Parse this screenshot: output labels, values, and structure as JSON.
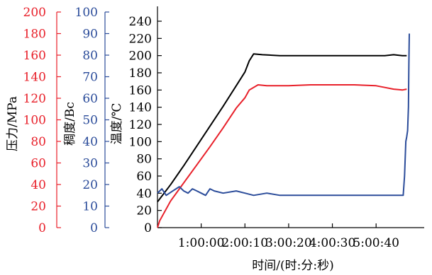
{
  "chart_data": {
    "type": "line",
    "title": "",
    "xlabel": "时间/(时:分:秒)",
    "x_unit": "hours",
    "xlim": [
      0,
      6.1
    ],
    "x_ticks": [
      {
        "value": 1.0,
        "label": "1:00:00"
      },
      {
        "value": 2.0,
        "label": "2:00:10"
      },
      {
        "value": 3.0,
        "label": "3:00:20"
      },
      {
        "value": 4.0,
        "label": "4:00:30"
      },
      {
        "value": 5.0,
        "label": "5:00:40"
      }
    ],
    "axes": [
      {
        "id": "pressure",
        "label": "压力/MPa",
        "color": "#e8202a",
        "ylim": [
          0,
          200
        ],
        "ticks": [
          0,
          20,
          40,
          60,
          80,
          100,
          120,
          140,
          160,
          180,
          200
        ]
      },
      {
        "id": "consistency",
        "label": "稠度/Bc",
        "color": "#2b4c9a",
        "ylim": [
          0,
          100
        ],
        "ticks": [
          0,
          10,
          20,
          30,
          40,
          50,
          60,
          70,
          80,
          90,
          100
        ]
      },
      {
        "id": "temperature",
        "label": "温度/℃",
        "color": "#000000",
        "ylim": [
          0,
          250
        ],
        "ticks": [
          0,
          20,
          40,
          60,
          80,
          100,
          120,
          140,
          160,
          180,
          200,
          220,
          240
        ]
      }
    ],
    "series": [
      {
        "axis": "temperature",
        "color": "#000000",
        "x": [
          0.0,
          0.3,
          0.6,
          0.9,
          1.2,
          1.5,
          1.8,
          2.0,
          2.1,
          2.2,
          2.4,
          2.8,
          3.2,
          3.6,
          4.0,
          4.4,
          4.8,
          5.0,
          5.2,
          5.4,
          5.6,
          5.7
        ],
        "y": [
          30,
          50,
          72,
          95,
          118,
          141,
          165,
          181,
          194,
          202,
          201,
          200,
          200,
          200,
          200,
          200,
          200,
          200,
          200,
          201,
          200,
          200
        ]
      },
      {
        "axis": "temperature",
        "color": "#e8202a",
        "x": [
          0.0,
          0.05,
          0.3,
          0.6,
          0.9,
          1.2,
          1.5,
          1.8,
          2.0,
          2.1,
          2.3,
          2.5,
          3.0,
          3.5,
          4.0,
          4.5,
          5.0,
          5.2,
          5.4,
          5.6,
          5.7
        ],
        "y": [
          0,
          8,
          31,
          52,
          73,
          94,
          116,
          139,
          151,
          160,
          166,
          165,
          165,
          166,
          166,
          166,
          165,
          163,
          161,
          160,
          161
        ]
      },
      {
        "axis": "consistency",
        "color": "#2b4c9a",
        "x": [
          0.0,
          0.1,
          0.2,
          0.35,
          0.5,
          0.6,
          0.7,
          0.8,
          0.9,
          1.0,
          1.1,
          1.2,
          1.3,
          1.5,
          1.8,
          2.0,
          2.2,
          2.5,
          2.8,
          3.0,
          3.5,
          4.0,
          4.5,
          5.0,
          5.3,
          5.6,
          5.62,
          5.65,
          5.68,
          5.7,
          5.72,
          5.74,
          5.75,
          5.76
        ],
        "y": [
          16,
          18,
          15,
          17,
          19,
          17,
          16,
          18,
          17,
          16,
          15,
          18,
          17,
          16,
          17,
          16,
          15,
          16,
          15,
          15,
          15,
          15,
          15,
          15,
          15,
          15,
          15,
          24,
          40,
          42,
          45,
          56,
          76,
          90
        ]
      }
    ],
    "grid": false,
    "legend": "none"
  }
}
